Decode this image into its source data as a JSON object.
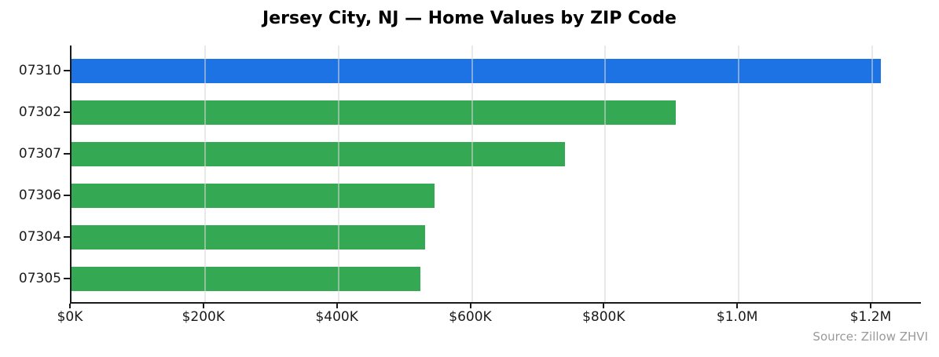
{
  "title": "Jersey City, NJ — Home Values by ZIP Code",
  "source": "Source: Zillow ZHVI",
  "colors": {
    "highlight_bar": "#1e73e4",
    "default_bar": "#34a853",
    "axis": "#1a1a1a",
    "source_text": "#999999"
  },
  "chart_data": {
    "type": "bar",
    "orientation": "horizontal",
    "title": "Jersey City, NJ — Home Values by ZIP Code",
    "categories": [
      "07310",
      "07302",
      "07307",
      "07306",
      "07304",
      "07305"
    ],
    "values": [
      1213000,
      905000,
      740000,
      544000,
      530000,
      523000
    ],
    "bar_colors": [
      "#1e73e4",
      "#34a853",
      "#34a853",
      "#34a853",
      "#34a853",
      "#34a853"
    ],
    "xlim": [
      0,
      1273000
    ],
    "x_ticks": [
      {
        "value": 0,
        "label": "$0K"
      },
      {
        "value": 200000,
        "label": "$200K"
      },
      {
        "value": 400000,
        "label": "$400K"
      },
      {
        "value": 600000,
        "label": "$600K"
      },
      {
        "value": 800000,
        "label": "$800K"
      },
      {
        "value": 1000000,
        "label": "$1.0M"
      },
      {
        "value": 1200000,
        "label": "$1.2M"
      }
    ],
    "grid": true,
    "grid_axis": "x",
    "legend": false,
    "annotation": "Source: Zillow ZHVI"
  }
}
